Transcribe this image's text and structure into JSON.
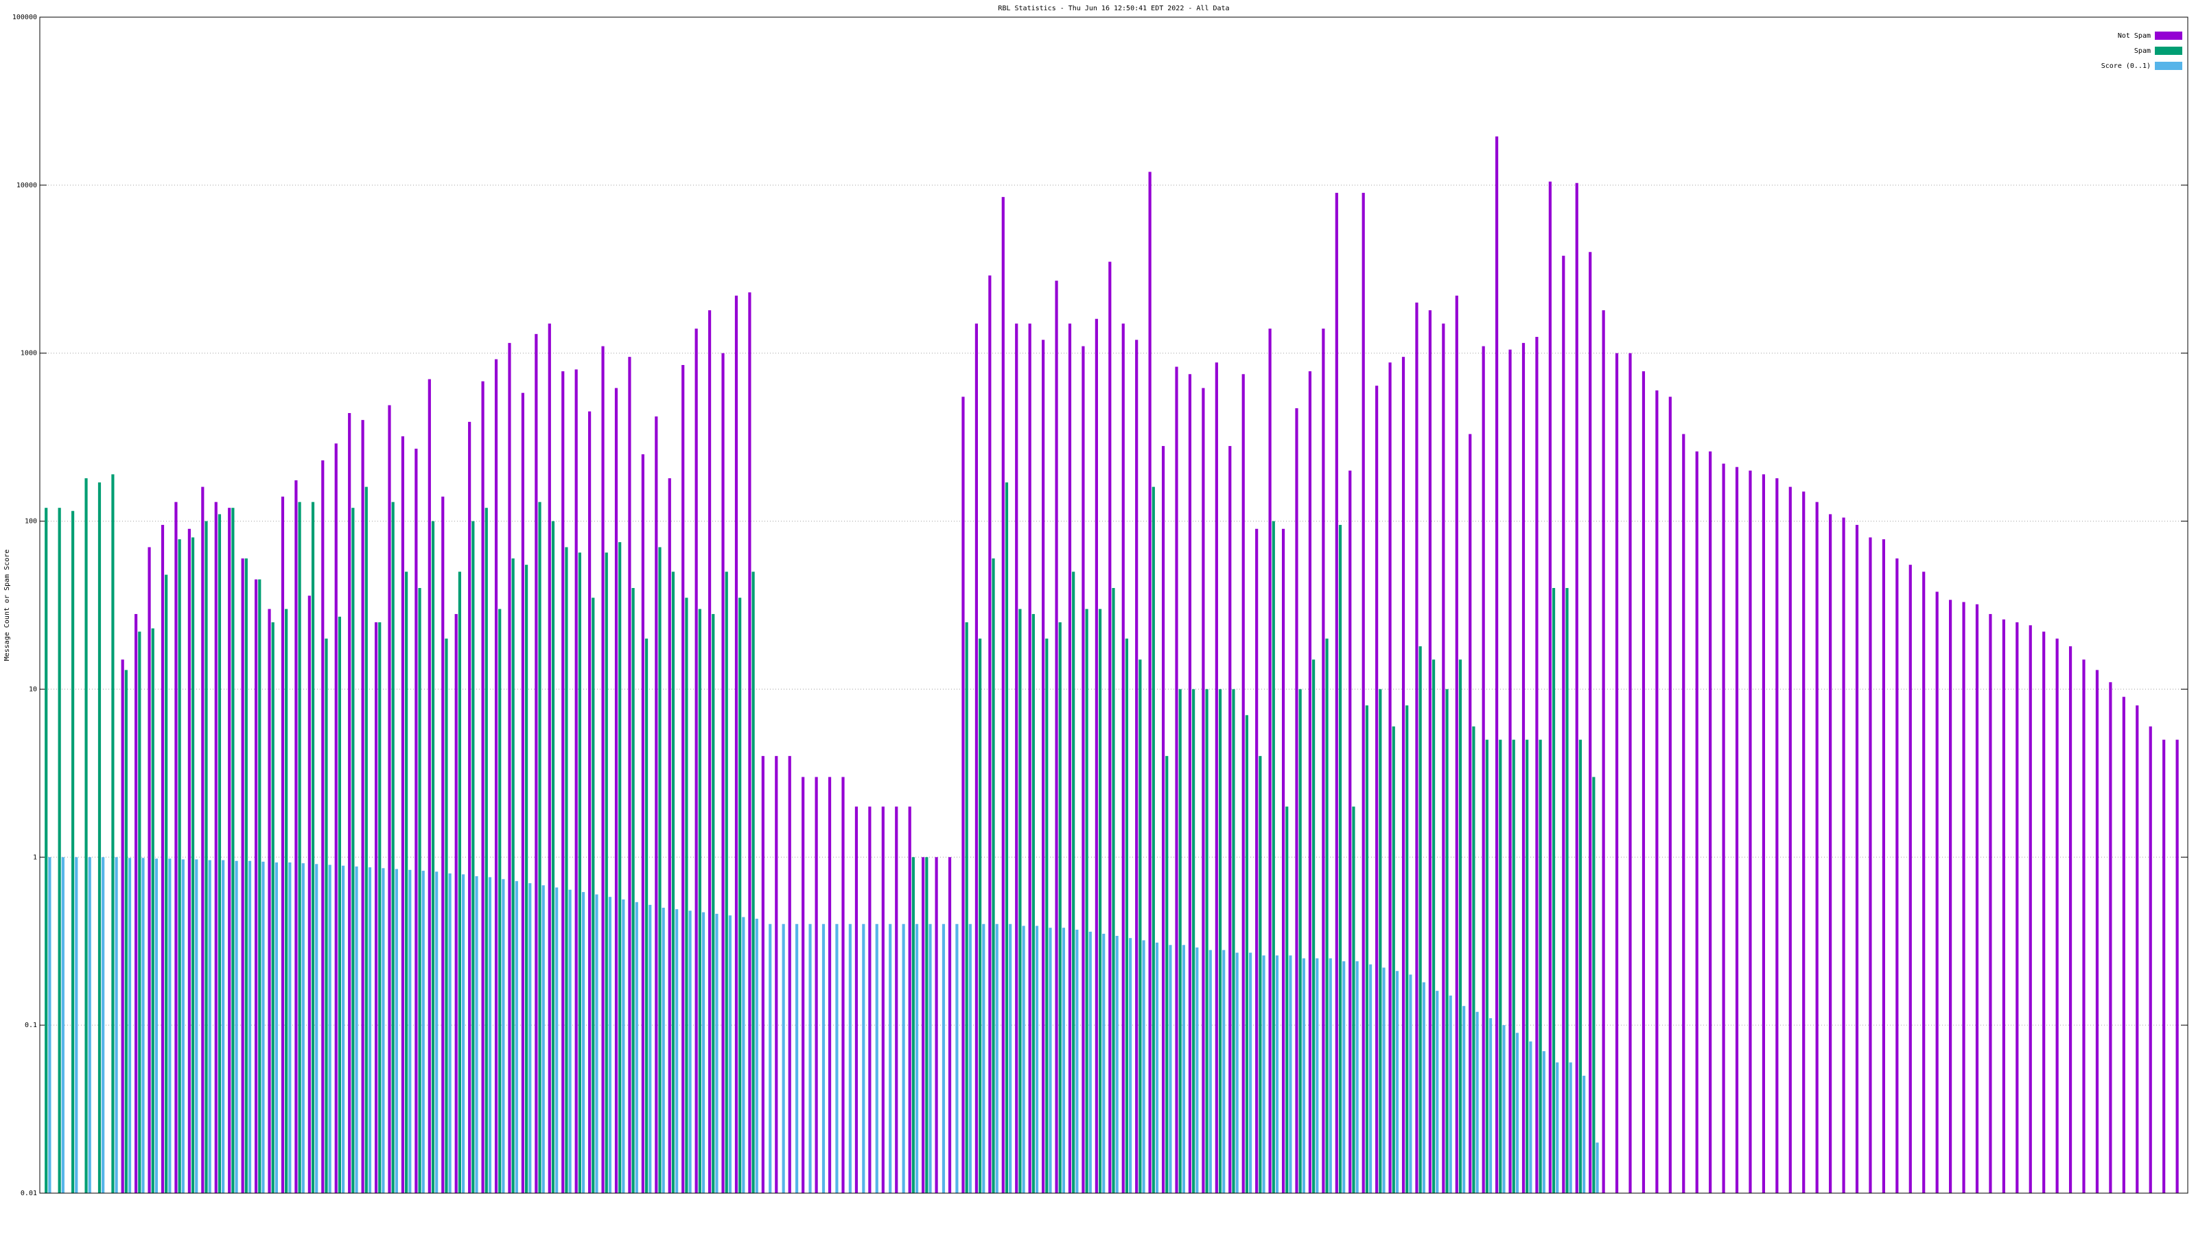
{
  "chart_data": {
    "type": "bar",
    "title": "RBL Statistics - Thu Jun 16 12:50:41 EDT 2022 - All Data",
    "y_label": "Message Count or Spam Score",
    "log_y": true,
    "grid": true,
    "legend": "top right",
    "ylim": [
      0.01,
      100000
    ],
    "yticks": [
      0.01,
      0.1,
      1,
      10,
      100,
      1000,
      10000,
      100000
    ],
    "categories": [
      null,
      null,
      null,
      null,
      null,
      null,
      null,
      null,
      null,
      null,
      null,
      null,
      null,
      null,
      null,
      null,
      null,
      null,
      null,
      null,
      null,
      null,
      null,
      null,
      null,
      null,
      null,
      null,
      null,
      null,
      null,
      null,
      null,
      null,
      null,
      null,
      null,
      null,
      null,
      null,
      null,
      null,
      null,
      null,
      null,
      null,
      null,
      null,
      null,
      null,
      null,
      null,
      null,
      null,
      null,
      null,
      null,
      null,
      null,
      null,
      null,
      null,
      null,
      null,
      null,
      null,
      null,
      null,
      null,
      null,
      null,
      null,
      null,
      null,
      null,
      null,
      null,
      null,
      null,
      null,
      null,
      null,
      null,
      null,
      null,
      null,
      null,
      null,
      null,
      null,
      null,
      null,
      null,
      null,
      null,
      null,
      null,
      null,
      null,
      null,
      null,
      null,
      null,
      null,
      null,
      null,
      null,
      null,
      null,
      null,
      null,
      null,
      null,
      null,
      null,
      null,
      null,
      null,
      null,
      null,
      null,
      null,
      null,
      null,
      null,
      null,
      null,
      null,
      null,
      null,
      null,
      null,
      null,
      null,
      null,
      null,
      null,
      null,
      null,
      null,
      null,
      null,
      null,
      null,
      null,
      null,
      null,
      null,
      null,
      null,
      null,
      null,
      null,
      null,
      null,
      null,
      null,
      null,
      null,
      null,
      null
    ],
    "series": [
      {
        "name": "Not Spam",
        "color": "#9400d3",
        "values": [
          null,
          null,
          null,
          null,
          null,
          null,
          15,
          28,
          70,
          95,
          130,
          90,
          160,
          130,
          120,
          60,
          45,
          30,
          140,
          175,
          36,
          230,
          290,
          440,
          400,
          25,
          490,
          320,
          270,
          700,
          140,
          28,
          390,
          680,
          920,
          1150,
          580,
          1300,
          1500,
          780,
          800,
          450,
          1100,
          620,
          950,
          250,
          420,
          180,
          850,
          1400,
          1800,
          1000,
          2200,
          2300,
          4,
          4,
          4,
          3,
          3,
          3,
          3,
          2,
          2,
          2,
          2,
          2,
          1,
          1,
          1,
          550,
          1500,
          2900,
          8500,
          1500,
          1500,
          1200,
          2700,
          1500,
          1100,
          1600,
          3500,
          1500,
          1200,
          12000,
          280,
          830,
          750,
          620,
          880,
          280,
          750,
          90,
          1400,
          90,
          470,
          780,
          1400,
          9000,
          200,
          9000,
          640,
          880,
          950,
          2000,
          1800,
          1500,
          2200,
          330,
          1100,
          19500,
          1050,
          1150,
          1250,
          10500,
          3800,
          10300,
          4000,
          1800,
          1000,
          1000,
          780,
          600,
          550,
          330,
          260,
          260,
          220,
          210,
          200,
          190,
          180,
          160,
          150,
          130,
          110,
          105,
          95,
          80,
          78,
          60,
          55,
          50,
          38,
          34,
          33,
          32,
          28,
          26,
          25,
          24,
          22,
          20,
          18,
          15,
          13,
          11,
          9,
          8,
          6,
          5,
          5
        ]
      },
      {
        "name": "Spam",
        "color": "#009e73",
        "values": [
          120,
          120,
          115,
          180,
          170,
          190,
          13,
          22,
          23,
          48,
          78,
          80,
          100,
          110,
          120,
          60,
          45,
          25,
          30,
          130,
          130,
          20,
          27,
          120,
          160,
          25,
          130,
          50,
          40,
          100,
          20,
          50,
          100,
          120,
          30,
          60,
          55,
          130,
          100,
          70,
          65,
          35,
          65,
          75,
          40,
          20,
          70,
          50,
          35,
          30,
          28,
          50,
          35,
          50,
          null,
          null,
          null,
          null,
          null,
          null,
          null,
          null,
          null,
          null,
          null,
          1,
          1,
          null,
          null,
          25,
          20,
          60,
          170,
          30,
          28,
          20,
          25,
          50,
          30,
          30,
          40,
          20,
          15,
          160,
          4,
          10,
          10,
          10,
          10,
          10,
          7,
          4,
          100,
          2,
          10,
          15,
          20,
          95,
          2,
          8,
          10,
          6,
          8,
          18,
          15,
          10,
          15,
          6,
          5,
          5,
          5,
          5,
          5,
          40,
          40,
          5,
          3,
          null,
          null,
          null,
          null,
          null,
          null,
          null,
          null,
          null,
          null,
          null,
          null,
          null,
          null,
          null,
          null,
          null,
          null,
          null,
          null,
          null,
          null,
          null,
          null,
          null,
          null,
          null,
          null,
          null,
          null,
          null,
          null,
          null,
          null,
          null,
          null,
          null,
          null,
          null,
          null,
          null,
          null,
          null,
          null
        ]
      },
      {
        "name": "Score (0..1)",
        "color": "#56b4e9",
        "values": [
          1,
          1,
          1,
          1,
          1,
          1,
          0.99,
          0.99,
          0.98,
          0.98,
          0.97,
          0.97,
          0.96,
          0.96,
          0.95,
          0.95,
          0.94,
          0.93,
          0.93,
          0.92,
          0.91,
          0.9,
          0.89,
          0.88,
          0.87,
          0.86,
          0.85,
          0.84,
          0.83,
          0.82,
          0.8,
          0.79,
          0.77,
          0.76,
          0.74,
          0.72,
          0.7,
          0.68,
          0.66,
          0.64,
          0.62,
          0.6,
          0.58,
          0.56,
          0.54,
          0.52,
          0.5,
          0.49,
          0.48,
          0.47,
          0.46,
          0.45,
          0.44,
          0.43,
          0.4,
          0.4,
          0.4,
          0.4,
          0.4,
          0.4,
          0.4,
          0.4,
          0.4,
          0.4,
          0.4,
          0.4,
          0.4,
          0.4,
          0.4,
          0.4,
          0.4,
          0.4,
          0.4,
          0.39,
          0.39,
          0.38,
          0.38,
          0.37,
          0.36,
          0.35,
          0.34,
          0.33,
          0.32,
          0.31,
          0.3,
          0.3,
          0.29,
          0.28,
          0.28,
          0.27,
          0.27,
          0.26,
          0.26,
          0.26,
          0.25,
          0.25,
          0.25,
          0.24,
          0.24,
          0.23,
          0.22,
          0.21,
          0.2,
          0.18,
          0.16,
          0.15,
          0.13,
          0.12,
          0.11,
          0.1,
          0.09,
          0.08,
          0.07,
          0.06,
          0.06,
          0.05,
          0.02,
          null,
          null,
          null,
          null,
          null,
          null,
          null,
          null,
          null,
          null,
          null,
          null,
          null,
          null,
          null,
          null,
          null,
          null,
          null,
          null,
          null,
          null,
          null,
          null,
          null,
          null,
          null,
          null,
          null,
          null,
          null,
          null,
          null,
          null,
          null,
          null,
          null,
          null,
          null,
          null,
          null,
          null,
          null,
          null
        ]
      }
    ]
  }
}
